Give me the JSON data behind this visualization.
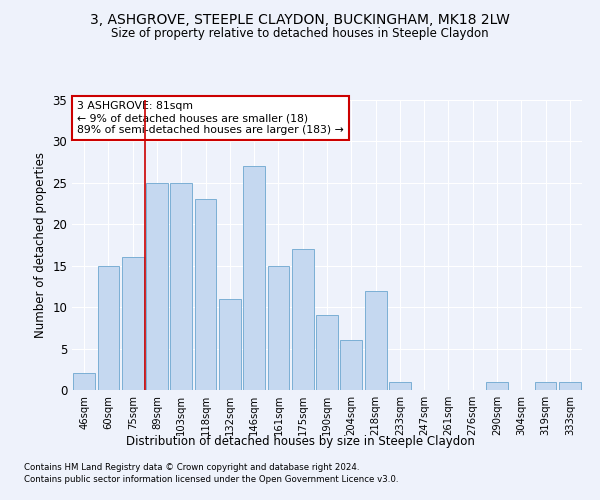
{
  "title": "3, ASHGROVE, STEEPLE CLAYDON, BUCKINGHAM, MK18 2LW",
  "subtitle": "Size of property relative to detached houses in Steeple Claydon",
  "xlabel": "Distribution of detached houses by size in Steeple Claydon",
  "ylabel": "Number of detached properties",
  "categories": [
    "46sqm",
    "60sqm",
    "75sqm",
    "89sqm",
    "103sqm",
    "118sqm",
    "132sqm",
    "146sqm",
    "161sqm",
    "175sqm",
    "190sqm",
    "204sqm",
    "218sqm",
    "233sqm",
    "247sqm",
    "261sqm",
    "276sqm",
    "290sqm",
    "304sqm",
    "319sqm",
    "333sqm"
  ],
  "values": [
    2,
    15,
    16,
    25,
    25,
    23,
    11,
    27,
    15,
    17,
    9,
    6,
    12,
    1,
    0,
    0,
    0,
    1,
    0,
    1,
    1
  ],
  "bar_color": "#c5d8f0",
  "bar_edge_color": "#7bafd4",
  "background_color": "#eef2fb",
  "grid_color": "#ffffff",
  "annotation_text_line1": "3 ASHGROVE: 81sqm",
  "annotation_text_line2": "← 9% of detached houses are smaller (18)",
  "annotation_text_line3": "89% of semi-detached houses are larger (183) →",
  "annotation_box_facecolor": "#ffffff",
  "annotation_box_edge_color": "#cc0000",
  "vline_color": "#cc0000",
  "vline_x_index": 2,
  "ylim": [
    0,
    35
  ],
  "yticks": [
    0,
    5,
    10,
    15,
    20,
    25,
    30,
    35
  ],
  "footnote1": "Contains HM Land Registry data © Crown copyright and database right 2024.",
  "footnote2": "Contains public sector information licensed under the Open Government Licence v3.0."
}
